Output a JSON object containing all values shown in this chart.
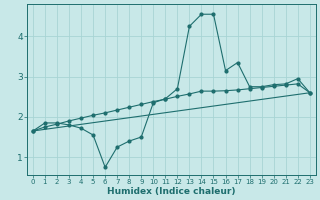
{
  "xlabel": "Humidex (Indice chaleur)",
  "background_color": "#c8e8e8",
  "grid_color": "#a8d4d4",
  "line_color": "#1e6e6e",
  "xlim": [
    -0.5,
    23.5
  ],
  "ylim": [
    0.55,
    4.8
  ],
  "x_ticks": [
    0,
    1,
    2,
    3,
    4,
    5,
    6,
    7,
    8,
    9,
    10,
    11,
    12,
    13,
    14,
    15,
    16,
    17,
    18,
    19,
    20,
    21,
    22,
    23
  ],
  "y_ticks": [
    1,
    2,
    3,
    4
  ],
  "line1_x": [
    0,
    1,
    2,
    3,
    4,
    5,
    6,
    7,
    8,
    9,
    10,
    11,
    12,
    13,
    14,
    15,
    16,
    17,
    18,
    19,
    20,
    21,
    22,
    23
  ],
  "line1_y": [
    1.65,
    1.85,
    1.85,
    1.8,
    1.72,
    1.55,
    0.75,
    1.25,
    1.4,
    1.5,
    2.35,
    2.45,
    2.7,
    4.25,
    4.55,
    4.55,
    3.15,
    3.35,
    2.75,
    2.75,
    2.8,
    2.82,
    2.95,
    2.6
  ],
  "line2_x": [
    0,
    1,
    2,
    3,
    4,
    5,
    6,
    7,
    8,
    9,
    10,
    11,
    12,
    13,
    14,
    15,
    16,
    17,
    18,
    19,
    20,
    21,
    22,
    23
  ],
  "line2_y": [
    1.65,
    1.75,
    1.82,
    1.9,
    1.97,
    2.04,
    2.1,
    2.17,
    2.24,
    2.31,
    2.38,
    2.44,
    2.51,
    2.57,
    2.64,
    2.64,
    2.65,
    2.67,
    2.7,
    2.73,
    2.76,
    2.79,
    2.82,
    2.6
  ],
  "line3_x": [
    0,
    23
  ],
  "line3_y": [
    1.65,
    2.6
  ],
  "xlabel_fontsize": 6.5,
  "xlabel_fontweight": "bold",
  "tick_labelsize": 5,
  "ytick_labelsize": 6.5
}
